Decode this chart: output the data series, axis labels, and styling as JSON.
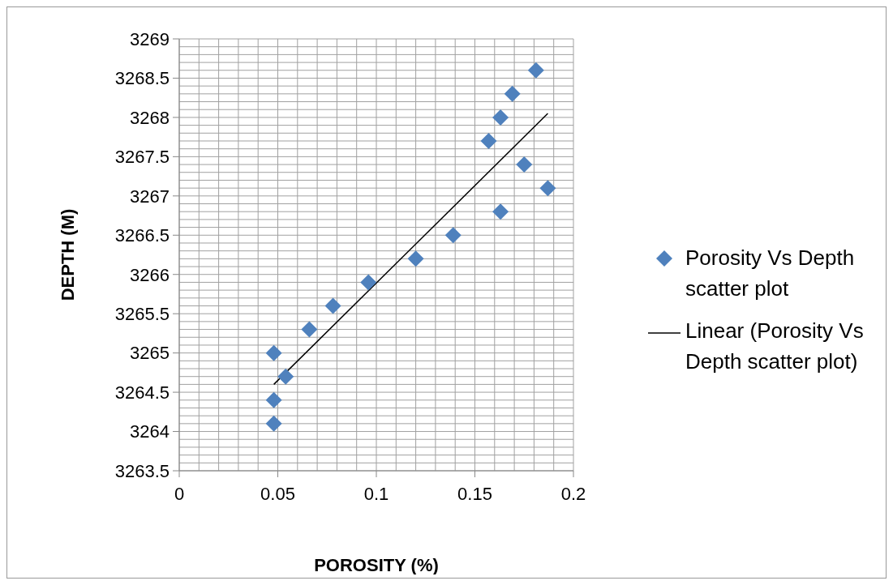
{
  "chart_data": {
    "type": "scatter",
    "xlabel": "POROSITY (%)",
    "ylabel": "DEPTH (M)",
    "xlim": [
      0,
      0.2
    ],
    "xticks": [
      0,
      0.05,
      0.1,
      0.15,
      0.2
    ],
    "ylim": [
      3263.5,
      3269
    ],
    "yticks": [
      3263.5,
      3264,
      3264.5,
      3265,
      3265.5,
      3266,
      3266.5,
      3267,
      3267.5,
      3268,
      3268.5,
      3269
    ],
    "grid": true,
    "legend": "right",
    "marker": "diamond",
    "series": [
      {
        "name": "Porosity Vs Depth scatter plot",
        "color": "#4f81bd",
        "x": [
          0.048,
          0.048,
          0.048,
          0.054,
          0.066,
          0.078,
          0.096,
          0.12,
          0.139,
          0.157,
          0.163,
          0.163,
          0.169,
          0.175,
          0.181,
          0.187
        ],
        "values": [
          3264.1,
          3264.4,
          3265.0,
          3264.7,
          3265.3,
          3265.6,
          3265.9,
          3266.2,
          3266.5,
          3267.7,
          3268.0,
          3266.8,
          3268.3,
          3267.4,
          3268.6,
          3267.1
        ]
      },
      {
        "name": "Linear (Porosity Vs Depth scatter plot)",
        "type": "line",
        "color": "#000000",
        "x": [
          0.048,
          0.187
        ],
        "values": [
          3264.6,
          3268.05
        ],
        "line_style": "solid",
        "marker": "none"
      }
    ]
  }
}
